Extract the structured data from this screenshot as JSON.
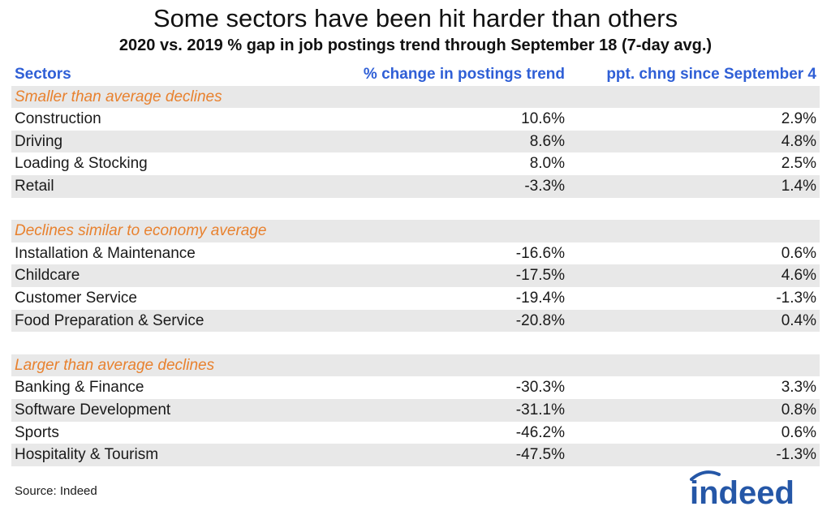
{
  "title": "Some sectors have been hit harder than others",
  "subtitle": "2020 vs. 2019 % gap in job postings trend through September 18 (7-day avg.)",
  "colors": {
    "header": "#2f5fd6",
    "group_label": "#e8812e",
    "shade": "#e8e8e8",
    "logo": "#2557a7"
  },
  "chart_data": {
    "type": "table",
    "columns": [
      "Sectors",
      "% change in postings trend",
      "ppt. chng since September 4"
    ],
    "groups": [
      {
        "label": "Smaller than average declines",
        "rows": [
          {
            "sector": "Construction",
            "pct": "10.6%",
            "ppt": "2.9%"
          },
          {
            "sector": "Driving",
            "pct": "8.6%",
            "ppt": "4.8%"
          },
          {
            "sector": "Loading & Stocking",
            "pct": "8.0%",
            "ppt": "2.5%"
          },
          {
            "sector": "Retail",
            "pct": "-3.3%",
            "ppt": "1.4%"
          }
        ]
      },
      {
        "label": "Declines similar to economy average",
        "rows": [
          {
            "sector": "Installation & Maintenance",
            "pct": "-16.6%",
            "ppt": "0.6%"
          },
          {
            "sector": "Childcare",
            "pct": "-17.5%",
            "ppt": "4.6%"
          },
          {
            "sector": "Customer Service",
            "pct": "-19.4%",
            "ppt": "-1.3%"
          },
          {
            "sector": "Food Preparation & Service",
            "pct": "-20.8%",
            "ppt": "0.4%"
          }
        ]
      },
      {
        "label": "Larger than average declines",
        "rows": [
          {
            "sector": "Banking & Finance",
            "pct": "-30.3%",
            "ppt": "3.3%"
          },
          {
            "sector": "Software Development",
            "pct": "-31.1%",
            "ppt": "0.8%"
          },
          {
            "sector": "Sports",
            "pct": "-46.2%",
            "ppt": "0.6%"
          },
          {
            "sector": "Hospitality & Tourism",
            "pct": "-47.5%",
            "ppt": "-1.3%"
          }
        ]
      }
    ]
  },
  "source": "Source: Indeed",
  "logo": {
    "text": "indeed",
    "icon": "indeed-logo-icon"
  }
}
